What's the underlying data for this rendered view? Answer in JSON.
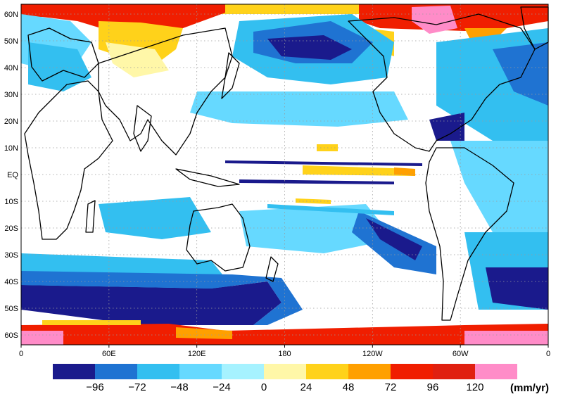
{
  "map": {
    "lat_labels": [
      "60N",
      "50N",
      "40N",
      "30N",
      "20N",
      "10N",
      "EQ",
      "10S",
      "20S",
      "30S",
      "40S",
      "50S",
      "60S"
    ],
    "lon_labels": [
      "0",
      "60E",
      "120E",
      "180",
      "120W",
      "60W",
      "0"
    ]
  },
  "colorbar": {
    "colors": [
      "#1a1a8c",
      "#1f73d2",
      "#33bff0",
      "#66d9ff",
      "#a6f2ff",
      "#fff7a8",
      "#ffd21a",
      "#ffa000",
      "#f01e00",
      "#e02010",
      "#ff8cc8"
    ],
    "ticks": [
      "−96",
      "−72",
      "−48",
      "−24",
      "0",
      "24",
      "48",
      "72",
      "96",
      "120"
    ],
    "unit": "(mm/yr)"
  }
}
